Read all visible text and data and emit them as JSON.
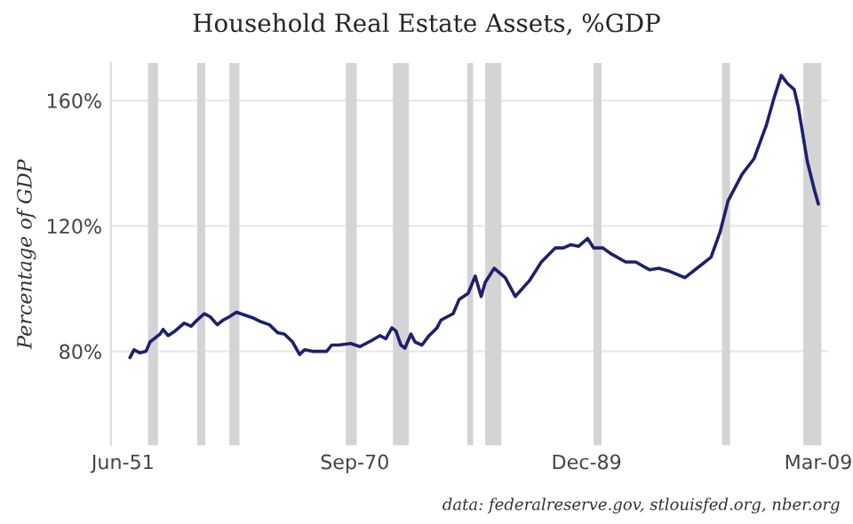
{
  "chart_data": {
    "type": "line",
    "title": "Household Real Estate Assets, %GDP",
    "ylabel": "Percentage of GDP",
    "annotations": [
      "data: federalreserve.gov, stlouisfed.org, nber.org"
    ],
    "x": [
      "1952-01",
      "1952-05",
      "1952-11",
      "1953-05",
      "1953-09",
      "1954-07",
      "1954-10",
      "1955-03",
      "1955-10",
      "1956-07",
      "1957-02",
      "1957-08",
      "1958-03",
      "1958-09",
      "1959-04",
      "1959-10",
      "1960-04",
      "1960-11",
      "1961-08",
      "1962-05",
      "1962-11",
      "1963-08",
      "1964-04",
      "1964-11",
      "1965-07",
      "1966-02",
      "1966-07",
      "1967-03",
      "1968-05",
      "1968-10",
      "1969-05",
      "1970-05",
      "1971-02",
      "1972-02",
      "1972-10",
      "1973-04",
      "1973-10",
      "1974-02",
      "1974-07",
      "1974-11",
      "1975-05",
      "1975-09",
      "1976-04",
      "1976-11",
      "1977-07",
      "1977-11",
      "1978-05",
      "1978-11",
      "1979-05",
      "1980-02",
      "1980-09",
      "1981-03",
      "1981-07",
      "1982-04",
      "1983-03",
      "1984-01",
      "1985-03",
      "1986-03",
      "1987-05",
      "1988-01",
      "1988-08",
      "1989-04",
      "1990-01",
      "1990-07",
      "1991-04",
      "1992-01",
      "1993-03",
      "1994-01",
      "1995-03",
      "1995-12",
      "1996-11",
      "1998-02",
      "1999-02",
      "2000-04",
      "2001-01",
      "2001-09",
      "2002-11",
      "2003-11",
      "2004-11",
      "2005-07",
      "2006-02",
      "2006-08",
      "2007-03",
      "2007-07",
      "2008-04",
      "2008-11",
      "2009-03"
    ],
    "series": [
      {
        "color": "#1f1f6e",
        "values": [
          78,
          80.5,
          79.5,
          80,
          83,
          85.5,
          87,
          85,
          86.5,
          89,
          88,
          90,
          92,
          91,
          88.5,
          90,
          91,
          92.5,
          91.5,
          90.5,
          89.5,
          88.5,
          86,
          85.5,
          83,
          79,
          80.5,
          80,
          80,
          82,
          82,
          82.5,
          81.5,
          83.5,
          85,
          84,
          87.5,
          86.5,
          82,
          81,
          85.5,
          83,
          82,
          85,
          87.5,
          90,
          91,
          92,
          96.5,
          98.5,
          104,
          97.5,
          102,
          106.5,
          103.5,
          97.5,
          102.5,
          108.5,
          113,
          113,
          114,
          113.5,
          116,
          113,
          113,
          111,
          108.5,
          108.5,
          106,
          106.5,
          105.5,
          103.5,
          106.5,
          110,
          118,
          128,
          136.5,
          141.5,
          152,
          161,
          168,
          165.5,
          163.5,
          158,
          140.5,
          131.5,
          127
        ]
      }
    ],
    "xlim": [
      "1950-06",
      "2009-12"
    ],
    "xticks": [
      {
        "value": "1951-06",
        "label": "Jun-51"
      },
      {
        "value": "1970-09",
        "label": "Sep-70"
      },
      {
        "value": "1989-12",
        "label": "Dec-89"
      },
      {
        "value": "2009-03",
        "label": "Mar-09"
      }
    ],
    "ylim": [
      50,
      172
    ],
    "yticks": [
      {
        "value": 80,
        "label": "80%"
      },
      {
        "value": 120,
        "label": "120%"
      },
      {
        "value": 160,
        "label": "160%"
      }
    ],
    "grid": "y",
    "bands": [
      {
        "axis": "x",
        "from": "1953-07",
        "to": "1954-05",
        "color": "#d4d4d4"
      },
      {
        "axis": "x",
        "from": "1957-08",
        "to": "1958-04",
        "color": "#d4d4d4"
      },
      {
        "axis": "x",
        "from": "1960-04",
        "to": "1961-02",
        "color": "#d4d4d4"
      },
      {
        "axis": "x",
        "from": "1969-12",
        "to": "1970-11",
        "color": "#d4d4d4"
      },
      {
        "axis": "x",
        "from": "1973-11",
        "to": "1975-03",
        "color": "#d4d4d4"
      },
      {
        "axis": "x",
        "from": "1980-01",
        "to": "1980-07",
        "color": "#d4d4d4"
      },
      {
        "axis": "x",
        "from": "1981-07",
        "to": "1982-11",
        "color": "#d4d4d4"
      },
      {
        "axis": "x",
        "from": "1990-07",
        "to": "1991-03",
        "color": "#d4d4d4"
      },
      {
        "axis": "x",
        "from": "2001-03",
        "to": "2001-11",
        "color": "#d4d4d4"
      },
      {
        "axis": "x",
        "from": "2007-12",
        "to": "2009-06",
        "color": "#d4d4d4"
      }
    ]
  }
}
